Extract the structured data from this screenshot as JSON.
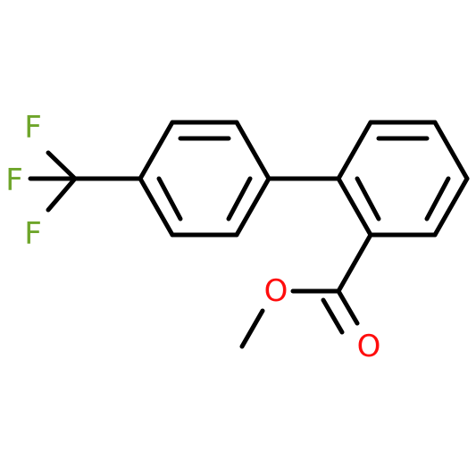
{
  "atoms": [
    {
      "label": "F"
    },
    {
      "label": "F"
    },
    {
      "label": "F"
    },
    {
      "label": "O"
    },
    {
      "label": "O"
    }
  ]
}
